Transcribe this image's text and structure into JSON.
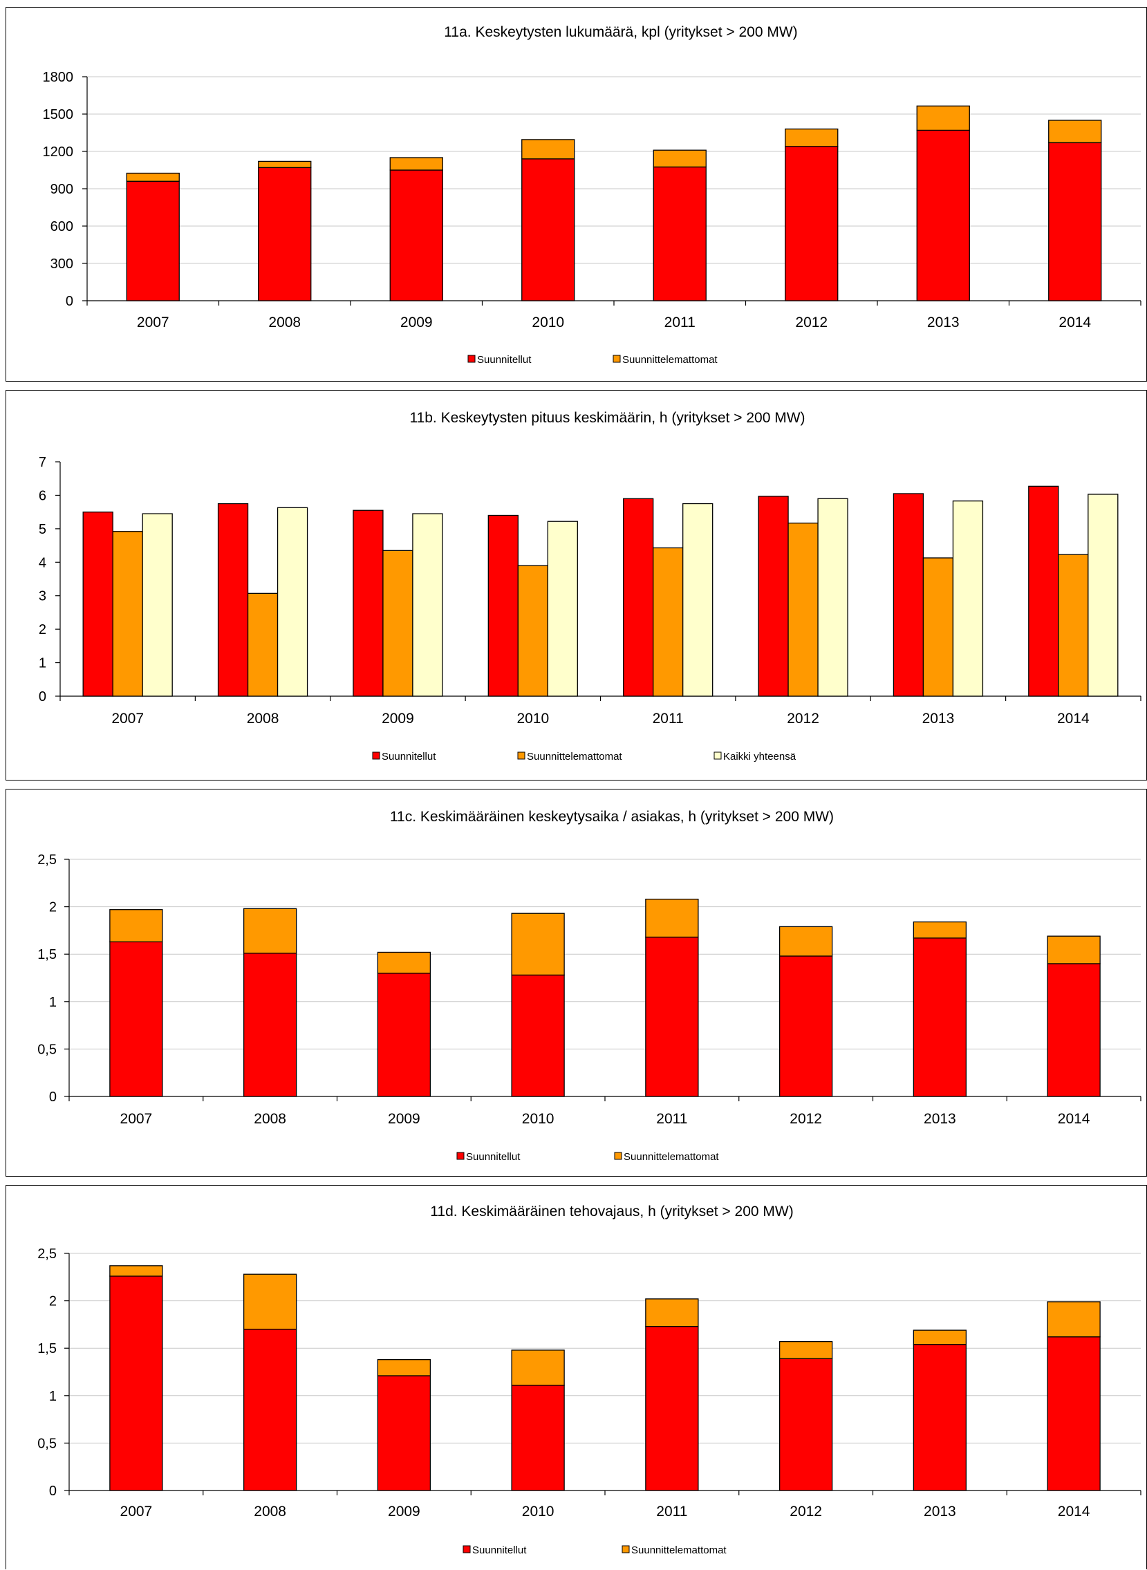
{
  "chart_data": [
    {
      "type": "bar",
      "stacked": true,
      "title": "11a. Keskeytysten lukumäärä, kpl (yritykset > 200 MW)",
      "categories": [
        "2007",
        "2008",
        "2009",
        "2010",
        "2011",
        "2012",
        "2013",
        "2014"
      ],
      "series": [
        {
          "name": "Suunnitellut",
          "values": [
            960,
            1070,
            1050,
            1140,
            1075,
            1240,
            1370,
            1270
          ],
          "color": "#ff0000"
        },
        {
          "name": "Suunnittelemattomat",
          "values": [
            65,
            50,
            100,
            155,
            135,
            140,
            195,
            180
          ],
          "color": "#ff9900"
        }
      ],
      "ylim": [
        0,
        1800
      ],
      "yticks": [
        "0",
        "300",
        "600",
        "900",
        "1200",
        "1500",
        "1800"
      ],
      "grid": true,
      "legend": "bottom"
    },
    {
      "type": "bar",
      "stacked": false,
      "title": "11b. Keskeytysten pituus keskimäärin, h (yritykset > 200 MW)",
      "categories": [
        "2007",
        "2008",
        "2009",
        "2010",
        "2011",
        "2012",
        "2013",
        "2014"
      ],
      "series": [
        {
          "name": "Suunnitellut",
          "values": [
            5.5,
            5.75,
            5.55,
            5.4,
            5.9,
            5.97,
            6.05,
            6.27
          ],
          "color": "#ff0000"
        },
        {
          "name": "Suunnittelemattomat",
          "values": [
            4.92,
            3.07,
            4.35,
            3.9,
            4.43,
            5.17,
            4.13,
            4.23
          ],
          "color": "#ff9900"
        },
        {
          "name": "Kaikki yhteensä",
          "values": [
            5.45,
            5.63,
            5.45,
            5.22,
            5.75,
            5.9,
            5.83,
            6.03
          ],
          "color": "#ffffcc"
        }
      ],
      "ylim": [
        0,
        7
      ],
      "yticks": [
        "0",
        "1",
        "2",
        "3",
        "4",
        "5",
        "6",
        "7"
      ],
      "grid": false,
      "legend": "bottom"
    },
    {
      "type": "bar",
      "stacked": true,
      "title": "11c. Keskimääräinen keskeytysaika / asiakas, h (yritykset > 200 MW)",
      "categories": [
        "2007",
        "2008",
        "2009",
        "2010",
        "2011",
        "2012",
        "2013",
        "2014"
      ],
      "series": [
        {
          "name": "Suunnitellut",
          "values": [
            1.63,
            1.51,
            1.3,
            1.28,
            1.68,
            1.48,
            1.67,
            1.4
          ],
          "color": "#ff0000"
        },
        {
          "name": "Suunnittelemattomat",
          "values": [
            0.34,
            0.47,
            0.22,
            0.65,
            0.4,
            0.31,
            0.17,
            0.29
          ],
          "color": "#ff9900"
        }
      ],
      "ylim": [
        0,
        2.5
      ],
      "yticks": [
        "0",
        "0,5",
        "1",
        "1,5",
        "2",
        "2,5"
      ],
      "grid": true,
      "legend": "bottom"
    },
    {
      "type": "bar",
      "stacked": true,
      "title": "11d. Keskimääräinen tehovajaus, h (yritykset > 200 MW)",
      "categories": [
        "2007",
        "2008",
        "2009",
        "2010",
        "2011",
        "2012",
        "2013",
        "2014"
      ],
      "series": [
        {
          "name": "Suunnitellut",
          "values": [
            2.26,
            1.7,
            1.21,
            1.11,
            1.73,
            1.39,
            1.54,
            1.62
          ],
          "color": "#ff0000"
        },
        {
          "name": "Suunnittelemattomat",
          "values": [
            0.11,
            0.58,
            0.17,
            0.37,
            0.29,
            0.18,
            0.15,
            0.37
          ],
          "color": "#ff9900"
        }
      ],
      "ylim": [
        0,
        2.5
      ],
      "yticks": [
        "0",
        "0,5",
        "1",
        "1,5",
        "2",
        "2,5"
      ],
      "grid": true,
      "legend": "bottom"
    }
  ]
}
